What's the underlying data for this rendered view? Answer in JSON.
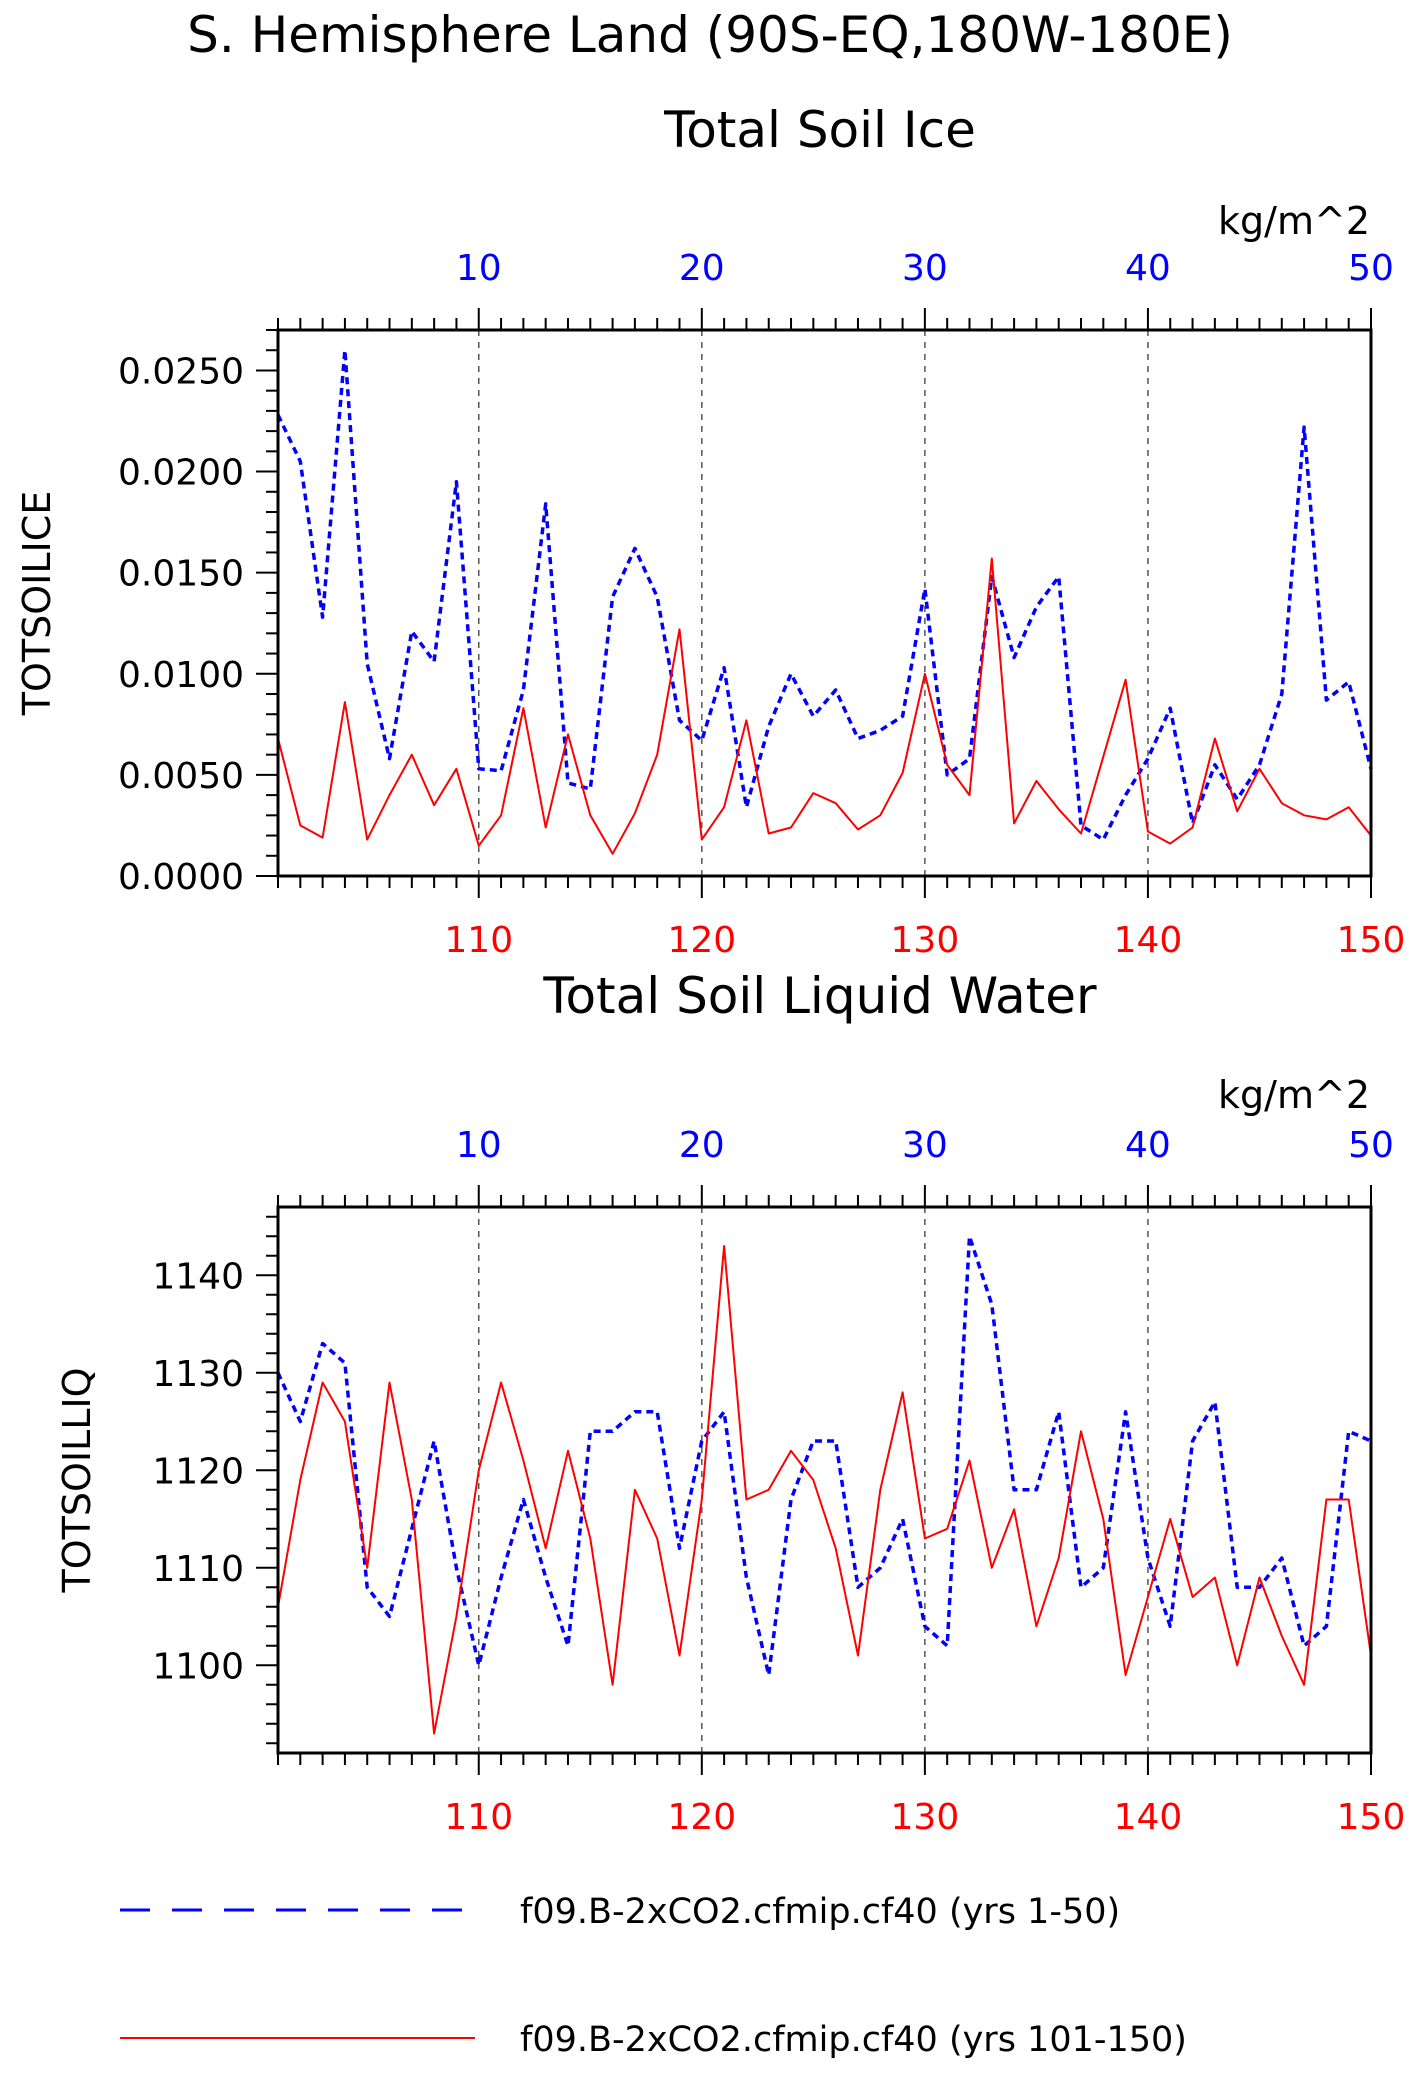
{
  "title": "S. Hemisphere Land (90S-EQ,180W-180E)",
  "colors": {
    "series_a": "#0000ff",
    "series_b": "#ff0000",
    "axis": "#000000",
    "grid": "#555555"
  },
  "legend": {
    "placement": "bottom",
    "entries": [
      "f09.B-2xCO2.cfmip.cf40 (yrs 1-50)",
      "f09.B-2xCO2.cfmip.cf40 (yrs 101-150)"
    ]
  },
  "chart_data": [
    {
      "type": "line",
      "title": "Total Soil Ice",
      "ylabel": "TOTSOILICE",
      "units": "kg/m^2",
      "ylim": [
        0,
        0.027
      ],
      "yticks": [
        0.0,
        0.005,
        0.01,
        0.015,
        0.02,
        0.025
      ],
      "yticklabels": [
        "0.0000",
        "0.0050",
        "0.0100",
        "0.0150",
        "0.0200",
        "0.0250"
      ],
      "grid": "vertical dashed",
      "top_axis": {
        "xlim": [
          1,
          50
        ],
        "ticks": [
          10,
          20,
          30,
          40,
          50
        ]
      },
      "bottom_axis": {
        "xlim": [
          101,
          150
        ],
        "ticks": [
          110,
          120,
          130,
          140,
          150
        ]
      },
      "series": [
        {
          "axis": "top",
          "style": "dashed",
          "x_start": 1,
          "values": [
            0.0228,
            0.0205,
            0.0128,
            0.026,
            0.0105,
            0.0058,
            0.0121,
            0.0106,
            0.0195,
            0.0053,
            0.0052,
            0.0092,
            0.0184,
            0.0046,
            0.0043,
            0.0138,
            0.0162,
            0.0138,
            0.0077,
            0.0067,
            0.0103,
            0.0034,
            0.0074,
            0.01,
            0.0079,
            0.0092,
            0.0068,
            0.0072,
            0.0079,
            0.0142,
            0.005,
            0.0058,
            0.0148,
            0.0108,
            0.0133,
            0.0148,
            0.0025,
            0.0018,
            0.004,
            0.0058,
            0.0083,
            0.0026,
            0.0055,
            0.0038,
            0.0055,
            0.009,
            0.0222,
            0.0087,
            0.0096,
            0.0053
          ]
        },
        {
          "axis": "bottom",
          "style": "solid",
          "x_start": 101,
          "values": [
            0.0068,
            0.0025,
            0.0019,
            0.0086,
            0.0018,
            0.004,
            0.006,
            0.0035,
            0.0053,
            0.0015,
            0.003,
            0.0083,
            0.0024,
            0.007,
            0.003,
            0.0011,
            0.0031,
            0.006,
            0.0122,
            0.0018,
            0.0034,
            0.0077,
            0.0021,
            0.0024,
            0.0041,
            0.0036,
            0.0023,
            0.003,
            0.0051,
            0.01,
            0.0055,
            0.004,
            0.0157,
            0.0026,
            0.0047,
            0.0033,
            0.0021,
            0.0059,
            0.0097,
            0.0022,
            0.0016,
            0.0024,
            0.0068,
            0.0032,
            0.0053,
            0.0036,
            0.003,
            0.0028,
            0.0034,
            0.002
          ]
        }
      ]
    },
    {
      "type": "line",
      "title": "Total Soil Liquid Water",
      "ylabel": "TOTSOILLIQ",
      "units": "kg/m^2",
      "ylim": [
        1091,
        1147
      ],
      "yticks": [
        1100,
        1110,
        1120,
        1130,
        1140
      ],
      "yticklabels": [
        "1100",
        "1110",
        "1120",
        "1130",
        "1140"
      ],
      "grid": "vertical dashed",
      "top_axis": {
        "xlim": [
          1,
          50
        ],
        "ticks": [
          10,
          20,
          30,
          40,
          50
        ]
      },
      "bottom_axis": {
        "xlim": [
          101,
          150
        ],
        "ticks": [
          110,
          120,
          130,
          140,
          150
        ]
      },
      "series": [
        {
          "axis": "top",
          "style": "dashed",
          "x_start": 1,
          "values": [
            1130,
            1125,
            1133,
            1131,
            1108,
            1105,
            1114,
            1123,
            1110,
            1100,
            1109,
            1117,
            1109,
            1102,
            1124,
            1124,
            1126,
            1126,
            1112,
            1123,
            1126,
            1109,
            1099,
            1117,
            1123,
            1123,
            1108,
            1110,
            1115,
            1104,
            1102,
            1144,
            1137,
            1118,
            1118,
            1126,
            1108,
            1110,
            1126,
            1111,
            1104,
            1123,
            1127,
            1108,
            1108,
            1111,
            1102,
            1104,
            1124,
            1123
          ]
        },
        {
          "axis": "bottom",
          "style": "solid",
          "x_start": 101,
          "values": [
            1106,
            1119,
            1129,
            1125,
            1110,
            1129,
            1117,
            1093,
            1105,
            1120,
            1129,
            1121,
            1112,
            1122,
            1113,
            1098,
            1118,
            1113,
            1101,
            1117,
            1143,
            1117,
            1118,
            1122,
            1119,
            1112,
            1101,
            1118,
            1128,
            1113,
            1114,
            1121,
            1110,
            1116,
            1104,
            1111,
            1124,
            1115,
            1099,
            1107,
            1115,
            1107,
            1109,
            1100,
            1109,
            1103,
            1098,
            1117,
            1117,
            1101
          ]
        }
      ]
    }
  ]
}
